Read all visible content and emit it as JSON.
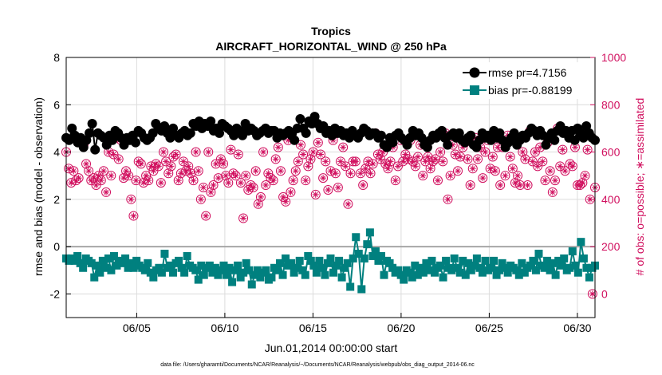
{
  "chart_data": {
    "type": "line",
    "title": "Tropics",
    "subtitle": "AIRCRAFT_HORIZONTAL_WIND @ 250 hPa",
    "xlabel": "Jun.01,2014 00:00:00 start",
    "ylabel": "rmse and bias (model - observation)",
    "y2label": "# of obs: o=possible; ∗=assimilated",
    "footnote": "data file: /Users/gharamti/Documents/NCAR/Reanalysis/~/Documents/NCAR/Reanalysis/webpub/obs_diag_output_2014-06.nc",
    "x_unit": "day of June 2014 (fractional)",
    "xlim": [
      1,
      31
    ],
    "ylim": [
      -3,
      8
    ],
    "y2lim": [
      -100,
      1000
    ],
    "x_ticks": [
      5,
      10,
      15,
      20,
      25,
      30
    ],
    "x_tick_labels": [
      "06/05",
      "06/10",
      "06/15",
      "06/20",
      "06/25",
      "06/30"
    ],
    "y_ticks": [
      -2,
      0,
      2,
      4,
      6,
      8
    ],
    "y_tick_labels": [
      "-2",
      "0",
      "2",
      "4",
      "6",
      "8"
    ],
    "y2_ticks": [
      0,
      200,
      400,
      600,
      800,
      1000
    ],
    "y2_tick_labels": [
      "0",
      "200",
      "400",
      "600",
      "800",
      "1000"
    ],
    "grid": true,
    "zero_line": 0,
    "legend_position": "top-right",
    "colors": {
      "rmse": "#000000",
      "bias": "#00807f",
      "obs": "#d1105f",
      "zero_line": "#a6a6a6",
      "grid": "#dcdcdc"
    },
    "series": [
      {
        "name": "rmse pr=4.7156",
        "axis": "left",
        "values": [
          4.6,
          4.5,
          5.0,
          4.7,
          4.4,
          4.6,
          4.2,
          4.5,
          4.8,
          5.2,
          4.1,
          4.8,
          4.7,
          4.6,
          4.3,
          4.7,
          4.5,
          4.9,
          4.8,
          4.6,
          4.3,
          4.6,
          4.5,
          4.7,
          4.4,
          4.9,
          4.8,
          4.6,
          4.5,
          4.6,
          4.8,
          5.2,
          5.0,
          4.9,
          5.1,
          4.8,
          4.6,
          5.0,
          4.7,
          4.6,
          4.8,
          4.9,
          4.7,
          4.8,
          5.2,
          5.1,
          5.3,
          5.0,
          5.2,
          5.1,
          5.3,
          4.9,
          5.0,
          4.8,
          5.2,
          5.1,
          5.0,
          4.9,
          4.7,
          5.0,
          4.9,
          4.7,
          5.2,
          4.9,
          5.0,
          4.9,
          4.7,
          4.8,
          4.9,
          5.0,
          4.8,
          4.9,
          4.9,
          4.6,
          4.8,
          4.7,
          4.8,
          4.9,
          4.7,
          4.5,
          5.0,
          5.4,
          5.0,
          4.8,
          5.3,
          5.2,
          5.5,
          5.2,
          5.0,
          5.1,
          4.8,
          4.9,
          4.7,
          5.0,
          4.8,
          4.9,
          4.7,
          4.8,
          4.6,
          4.9,
          4.7,
          4.6,
          4.8,
          5.0,
          4.9,
          4.7,
          4.8,
          4.8,
          4.6,
          4.7,
          4.3,
          4.2,
          4.6,
          4.4,
          4.7,
          4.8,
          4.6,
          4.5,
          4.3,
          4.6,
          4.9,
          4.7,
          4.8,
          4.6,
          4.3,
          4.2,
          4.5,
          4.7,
          4.6,
          4.8,
          4.9,
          4.6,
          4.3,
          4.7,
          4.8,
          4.6,
          4.8,
          4.5,
          4.4,
          4.6,
          4.7,
          4.3,
          4.2,
          4.5,
          4.8,
          4.6,
          4.7,
          4.5,
          4.9,
          4.6,
          4.8,
          4.5,
          4.2,
          4.4,
          4.6,
          4.8,
          4.3,
          4.5,
          4.7,
          4.6,
          4.8,
          5.0,
          4.9,
          4.7,
          4.9,
          4.7,
          4.3,
          4.6,
          4.8,
          4.5,
          4.9,
          5.1,
          4.8,
          4.9,
          4.6,
          4.9,
          4.5,
          5.0,
          4.8,
          4.6,
          5.1,
          4.8,
          4.6,
          4.5
        ]
      },
      {
        "name": "bias pr=-0.88199",
        "axis": "left",
        "values": [
          -0.5,
          -0.6,
          -0.5,
          -0.6,
          -0.4,
          -0.7,
          -0.9,
          -0.5,
          -0.6,
          -0.7,
          -1.3,
          -0.8,
          -1.1,
          -0.6,
          -0.9,
          -0.5,
          -1.0,
          -0.4,
          -0.8,
          -0.6,
          -0.7,
          -0.5,
          -0.9,
          -0.7,
          -0.9,
          -0.6,
          -0.8,
          -0.9,
          -1.0,
          -0.7,
          -1.1,
          -1.3,
          -1.0,
          -0.9,
          -1.1,
          -0.3,
          -0.9,
          -0.8,
          -1.1,
          -0.7,
          -0.6,
          -0.9,
          -1.1,
          -0.4,
          -0.8,
          -0.9,
          -1.0,
          -1.4,
          -0.8,
          -1.2,
          -0.9,
          -0.8,
          -1.1,
          -0.9,
          -1.2,
          -1.0,
          -0.8,
          -1.2,
          -0.9,
          -1.5,
          -1.0,
          -0.8,
          -1.3,
          -1.1,
          -0.7,
          -1.0,
          -1.6,
          -1.2,
          -1.0,
          -1.3,
          -1.1,
          -1.0,
          -1.4,
          -1.3,
          -0.9,
          -1.0,
          -0.7,
          -1.2,
          -0.5,
          -0.8,
          -0.7,
          -1.1,
          -0.9,
          -0.6,
          -1.0,
          -1.2,
          -0.4,
          -0.6,
          -0.8,
          -1.1,
          -0.6,
          -0.9,
          -1.2,
          -0.7,
          -0.5,
          -1.1,
          -0.8,
          -0.6,
          -1.3,
          -0.9,
          -0.7,
          -1.7,
          -0.5,
          0.4,
          -0.3,
          -1.8,
          -0.5,
          0.1,
          0.6,
          -0.4,
          -0.2,
          -0.6,
          -0.4,
          -1.2,
          -0.6,
          -0.7,
          -0.9,
          -1.1,
          -1.0,
          -1.2,
          -1.4,
          -1.0,
          -1.1,
          -1.3,
          -0.8,
          -1.2,
          -0.9,
          -1.1,
          -0.7,
          -1.0,
          -0.6,
          -1.1,
          -0.9,
          -0.8,
          -1.3,
          -0.6,
          -0.9,
          -1.0,
          -0.5,
          -0.9,
          -1.1,
          -0.6,
          -1.2,
          -0.7,
          -1.0,
          -0.8,
          -0.5,
          -0.9,
          -1.1,
          -0.6,
          -1.0,
          -0.9,
          -0.6,
          -1.2,
          -1.0,
          -0.7,
          -0.9,
          -1.1,
          -0.8,
          -0.9,
          -1.0,
          -1.2,
          -0.7,
          -1.1,
          -0.9,
          -0.8,
          -0.6,
          -1.0,
          -0.3,
          -0.8,
          -0.9,
          -0.6,
          -1.0,
          -0.7,
          -1.2,
          -0.6,
          -0.8,
          -0.5,
          -1.0,
          -0.9,
          -0.2,
          -0.8,
          -1.1,
          0.2,
          -0.5,
          -0.9,
          -1.3,
          -0.9,
          -0.8
        ]
      },
      {
        "name": "obs",
        "axis": "right",
        "values": [
          600,
          530,
          470,
          520,
          480,
          490,
          640,
          630,
          550,
          520,
          480,
          490,
          460,
          500,
          480,
          520,
          430,
          600,
          500,
          590,
          660,
          570,
          650,
          490,
          520,
          500,
          400,
          330,
          480,
          560,
          550,
          470,
          500,
          480,
          540,
          520,
          550,
          540,
          470,
          600,
          560,
          510,
          540,
          580,
          590,
          480,
          510,
          560,
          520,
          540,
          510,
          480,
          600,
          520,
          400,
          450,
          330,
          600,
          430,
          460,
          550,
          490,
          570,
          550,
          500,
          470,
          610,
          510,
          500,
          590,
          470,
          320,
          500,
          440,
          460,
          450,
          520,
          380,
          410,
          600,
          460,
          510,
          490,
          480,
          570,
          620,
          520,
          410,
          390,
          650,
          430,
          480,
          520,
          560,
          630,
          590,
          480,
          540,
          570,
          600,
          420,
          640,
          590,
          490,
          560,
          440,
          520,
          650,
          510,
          450,
          560,
          620,
          540,
          380,
          510,
          560,
          560,
          670,
          510,
          460,
          530,
          560,
          510,
          550,
          680,
          590,
          570,
          600,
          550,
          530,
          560,
          620,
          480,
          540,
          650,
          560,
          590,
          570,
          650,
          560,
          540,
          580,
          630,
          500,
          560,
          580,
          530,
          560,
          570,
          480,
          600,
          560,
          680,
          400,
          500,
          630,
          590,
          520,
          580,
          620,
          640,
          570,
          460,
          530,
          660,
          570,
          620,
          490,
          600,
          650,
          530,
          580,
          520,
          620,
          460,
          620,
          500,
          670,
          580,
          530,
          470,
          500,
          460,
          600,
          570,
          460,
          690,
          560,
          600,
          540,
          620,
          560,
          480,
          640,
          520,
          430,
          480,
          700,
          540,
          610,
          520,
          680,
          550,
          540,
          620,
          460,
          460,
          470,
          500,
          610,
          400,
          0,
          450
        ]
      }
    ]
  }
}
